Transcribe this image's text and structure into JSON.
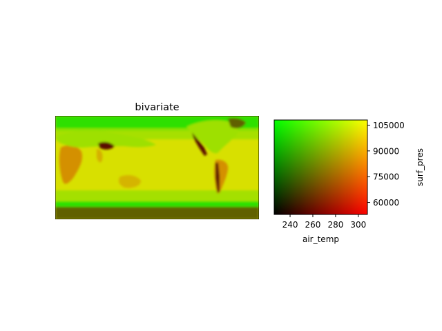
{
  "chart_data": [
    {
      "type": "heatmap",
      "title": "bivariate",
      "content": "global map rendered with a two-variable colormap",
      "colors": {
        "ocean": "#d8e000",
        "mid": "#9ee000",
        "high_latitude": "#2ee000",
        "ice": "#606000",
        "mountain": "#5a1000",
        "land": "#d49000"
      }
    },
    {
      "type": "heatmap",
      "title": "",
      "xlabel": "air_temp",
      "ylabel": "surf_pres",
      "xlim": [
        226,
        308
      ],
      "ylim": [
        53000,
        108000
      ],
      "xticks": [
        "240",
        "260",
        "280",
        "300"
      ],
      "yticks": [
        "60000",
        "75000",
        "90000",
        "105000"
      ],
      "corner_colors": {
        "low_x_low_y": "#000000",
        "high_x_low_y": "#ff0000",
        "low_x_high_y": "#00ff00",
        "high_x_high_y": "#ffff00"
      }
    }
  ]
}
